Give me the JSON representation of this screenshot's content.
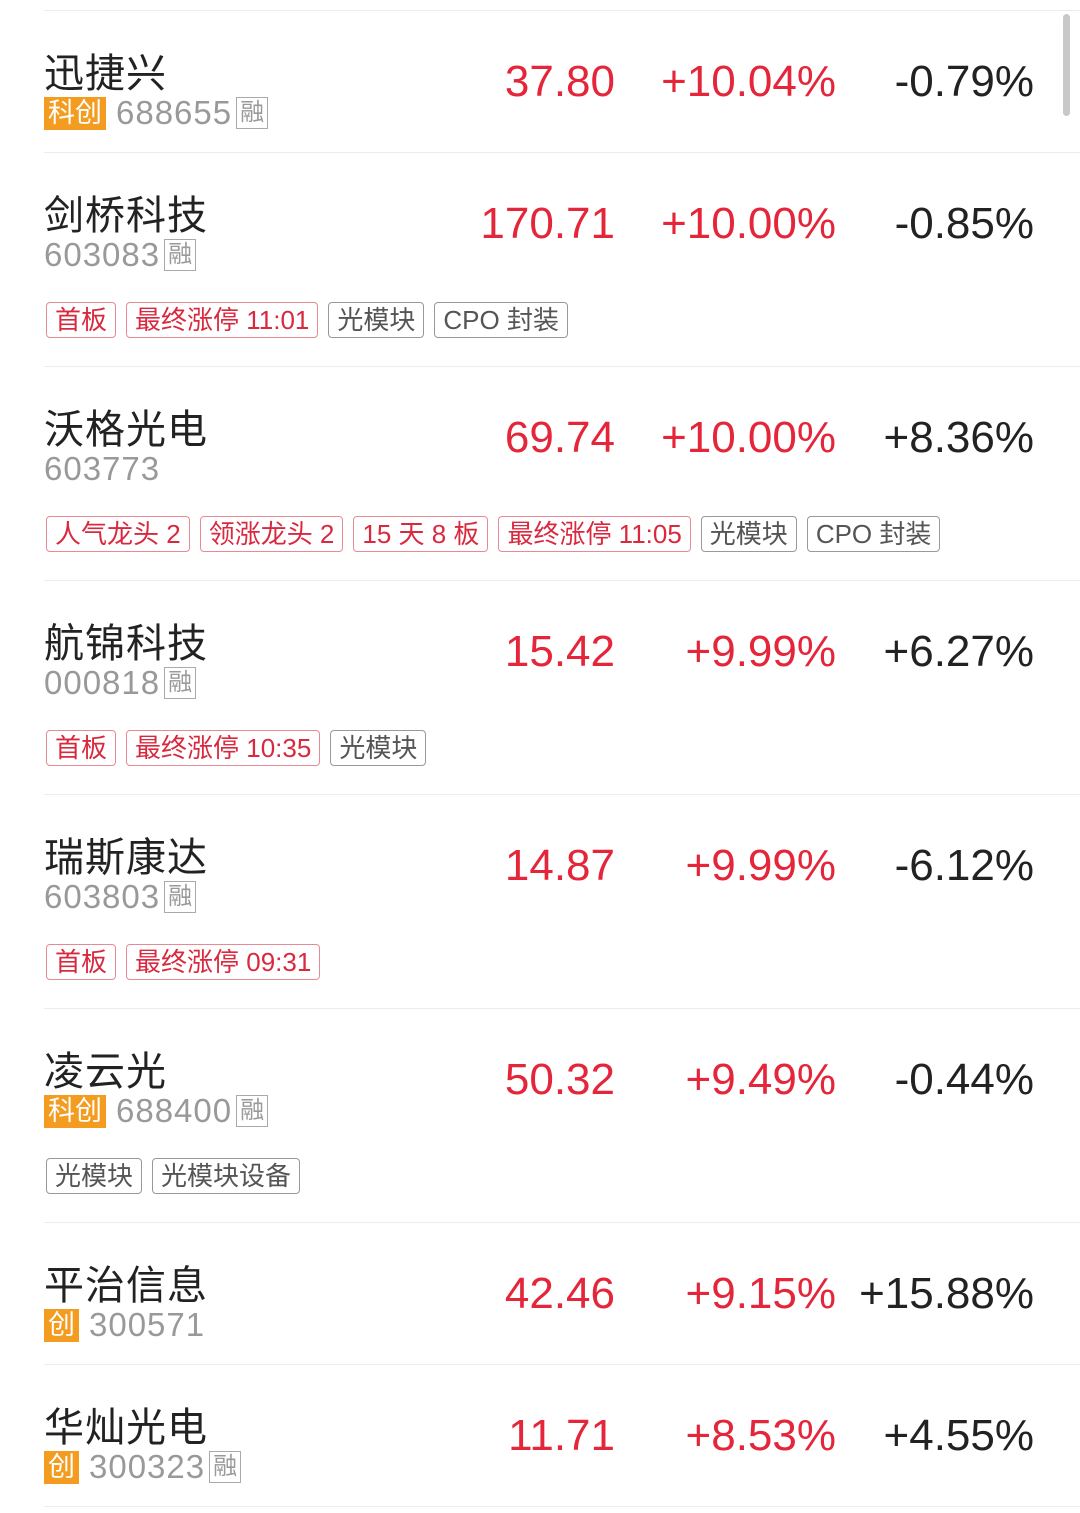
{
  "colors": {
    "up": "#e4253a",
    "board": "#f39c1f",
    "tag_red": "#d9293f"
  },
  "stocks": [
    {
      "name": "迅捷兴",
      "board": "科创",
      "code": "688655",
      "rong": "融",
      "price": "37.80",
      "change": "+10.04%",
      "pct": "-0.79%",
      "tags": []
    },
    {
      "name": "剑桥科技",
      "board": "",
      "code": "603083",
      "rong": "融",
      "price": "170.71",
      "change": "+10.00%",
      "pct": "-0.85%",
      "tags": [
        {
          "t": "首板",
          "red": true
        },
        {
          "t": "最终涨停 11:01",
          "red": true
        },
        {
          "t": "光模块",
          "red": false
        },
        {
          "t": "CPO 封装",
          "red": false
        }
      ]
    },
    {
      "name": "沃格光电",
      "board": "",
      "code": "603773",
      "rong": "",
      "price": "69.74",
      "change": "+10.00%",
      "pct": "+8.36%",
      "tags": [
        {
          "t": "人气龙头 2",
          "red": true
        },
        {
          "t": "领涨龙头 2",
          "red": true
        },
        {
          "t": "15 天 8 板",
          "red": true
        },
        {
          "t": "最终涨停 11:05",
          "red": true
        },
        {
          "t": "光模块",
          "red": false
        },
        {
          "t": "CPO 封装",
          "red": false
        }
      ]
    },
    {
      "name": "航锦科技",
      "board": "",
      "code": "000818",
      "rong": "融",
      "price": "15.42",
      "change": "+9.99%",
      "pct": "+6.27%",
      "tags": [
        {
          "t": "首板",
          "red": true
        },
        {
          "t": "最终涨停 10:35",
          "red": true
        },
        {
          "t": "光模块",
          "red": false
        }
      ]
    },
    {
      "name": "瑞斯康达",
      "board": "",
      "code": "603803",
      "rong": "融",
      "price": "14.87",
      "change": "+9.99%",
      "pct": "-6.12%",
      "tags": [
        {
          "t": "首板",
          "red": true
        },
        {
          "t": "最终涨停 09:31",
          "red": true
        }
      ]
    },
    {
      "name": "凌云光",
      "board": "科创",
      "code": "688400",
      "rong": "融",
      "price": "50.32",
      "change": "+9.49%",
      "pct": "-0.44%",
      "tags": [
        {
          "t": "光模块",
          "red": false
        },
        {
          "t": "光模块设备",
          "red": false
        }
      ]
    },
    {
      "name": "平治信息",
      "board": "创",
      "code": "300571",
      "rong": "",
      "price": "42.46",
      "change": "+9.15%",
      "pct": "+15.88%",
      "tags": []
    },
    {
      "name": "华灿光电",
      "board": "创",
      "code": "300323",
      "rong": "融",
      "price": "11.71",
      "change": "+8.53%",
      "pct": "+4.55%",
      "tags": []
    }
  ]
}
